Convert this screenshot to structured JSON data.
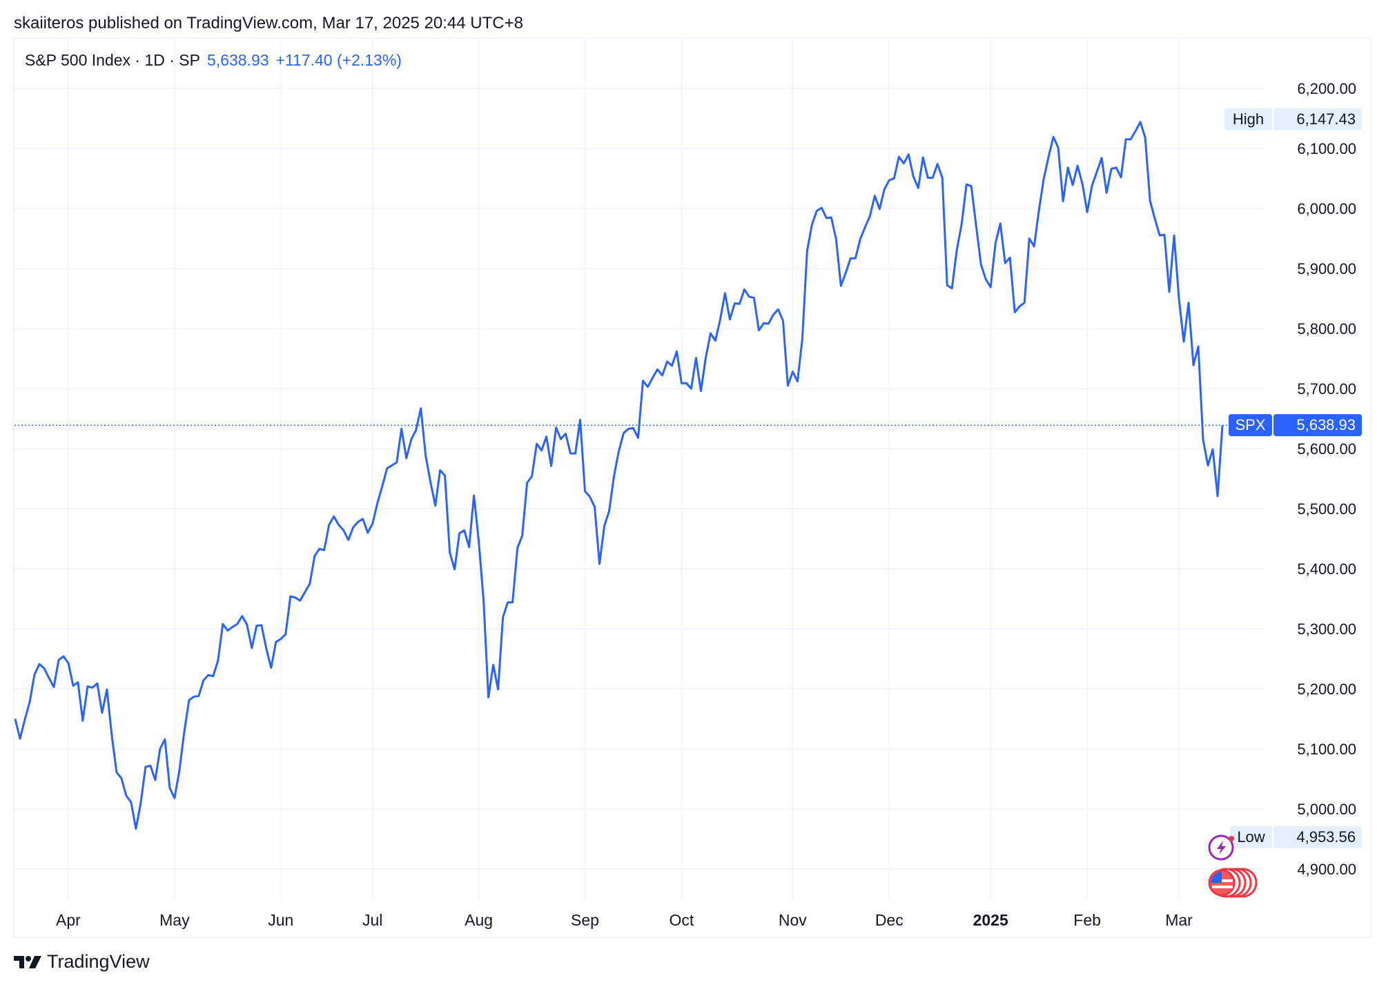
{
  "publisher_line": "skaiiteros published on TradingView.com, Mar 17, 2025 20:44 UTC+8",
  "legend": {
    "symbol_desc": "S&P 500 Index · 1D · SP",
    "last_price": "5,638.93",
    "change": "+117.40 (+2.13%)"
  },
  "price_tag": {
    "symbol": "SPX",
    "value": "5,638.93"
  },
  "high_tag": {
    "label": "High",
    "value": "6,147.43"
  },
  "low_tag": {
    "label": "Low",
    "value": "4,953.56"
  },
  "footer": {
    "brand": "TradingView"
  },
  "icons": [
    "lightning-event-icon",
    "us-flag-economic-events-icon"
  ],
  "colors": {
    "line": "#2962ff",
    "grid": "#f0f3fa",
    "high_low_bg": "#e3effd",
    "price_tag": "#2962ff"
  },
  "chart_data": {
    "type": "line",
    "title": "S&P 500 Index · 1D · SP",
    "ylim": [
      4840,
      6240
    ],
    "y_ticks": [
      4900,
      5000,
      5100,
      5200,
      5300,
      5400,
      5500,
      5600,
      5700,
      5800,
      5900,
      6000,
      6100,
      6200
    ],
    "y_tick_labels": [
      "4,900.00",
      "5,000.00",
      "5,100.00",
      "5,200.00",
      "5,300.00",
      "5,400.00",
      "5,500.00",
      "5,600.00",
      "5,700.00",
      "5,800.00",
      "5,900.00",
      "6,000.00",
      "6,100.00",
      "6,200.00"
    ],
    "x_tick_labels": [
      {
        "label": "Apr",
        "month": "2024-04"
      },
      {
        "label": "May",
        "month": "2024-05"
      },
      {
        "label": "Jun",
        "month": "2024-06"
      },
      {
        "label": "Jul",
        "month": "2024-07"
      },
      {
        "label": "Aug",
        "month": "2024-08"
      },
      {
        "label": "Sep",
        "month": "2024-09"
      },
      {
        "label": "Oct",
        "month": "2024-10"
      },
      {
        "label": "Nov",
        "month": "2024-11"
      },
      {
        "label": "Dec",
        "month": "2024-12"
      },
      {
        "label": "2025",
        "month": "2025-01",
        "bold": true
      },
      {
        "label": "Feb",
        "month": "2025-02"
      },
      {
        "label": "Mar",
        "month": "2025-03"
      }
    ],
    "grid": true,
    "last_value": 5638.93,
    "months": [
      {
        "month": "2024-03",
        "days": [
          14,
          15,
          18,
          19,
          20,
          21,
          22,
          25,
          26,
          27,
          28
        ],
        "close": [
          5150,
          5117,
          5149,
          5178,
          5224,
          5241,
          5234,
          5218,
          5203,
          5248,
          5254
        ]
      },
      {
        "month": "2024-04",
        "days": [
          1,
          2,
          3,
          4,
          5,
          8,
          9,
          10,
          11,
          12,
          15,
          16,
          17,
          18,
          19,
          22,
          23,
          24,
          25,
          26,
          29,
          30
        ],
        "close": [
          5243,
          5205,
          5211,
          5147,
          5204,
          5202,
          5209,
          5160,
          5199,
          5123,
          5061,
          5051,
          5022,
          5011,
          4967,
          5010,
          5070,
          5072,
          5048,
          5100,
          5116,
          5035
        ]
      },
      {
        "month": "2024-05",
        "days": [
          1,
          2,
          3,
          6,
          7,
          8,
          9,
          10,
          13,
          14,
          15,
          16,
          17,
          20,
          21,
          22,
          23,
          24,
          28,
          29,
          30,
          31
        ],
        "close": [
          5018,
          5064,
          5128,
          5181,
          5187,
          5188,
          5214,
          5223,
          5221,
          5247,
          5308,
          5297,
          5303,
          5308,
          5321,
          5307,
          5268,
          5305,
          5306,
          5267,
          5235,
          5278
        ]
      },
      {
        "month": "2024-06",
        "days": [
          3,
          4,
          5,
          6,
          7,
          10,
          11,
          12,
          13,
          14,
          17,
          18,
          20,
          21,
          24,
          25,
          26,
          27,
          28
        ],
        "close": [
          5283,
          5291,
          5354,
          5352,
          5347,
          5361,
          5375,
          5421,
          5433,
          5431,
          5473,
          5487,
          5473,
          5464,
          5448,
          5469,
          5478,
          5483,
          5460
        ]
      },
      {
        "month": "2024-07",
        "days": [
          1,
          2,
          3,
          5,
          8,
          9,
          10,
          11,
          12,
          15,
          16,
          17,
          18,
          19,
          22,
          23,
          24,
          25,
          26,
          29,
          30,
          31
        ],
        "close": [
          5475,
          5509,
          5537,
          5567,
          5572,
          5577,
          5633,
          5584,
          5615,
          5631,
          5667,
          5588,
          5544,
          5505,
          5564,
          5555,
          5427,
          5399,
          5459,
          5464,
          5436,
          5522
        ]
      },
      {
        "month": "2024-08",
        "days": [
          1,
          2,
          5,
          6,
          7,
          8,
          9,
          12,
          13,
          14,
          15,
          16,
          19,
          20,
          21,
          22,
          23,
          26,
          27,
          28,
          29,
          30
        ],
        "close": [
          5446,
          5347,
          5186,
          5240,
          5199,
          5319,
          5344,
          5344,
          5434,
          5455,
          5543,
          5554,
          5608,
          5597,
          5620,
          5571,
          5635,
          5616,
          5625,
          5592,
          5592,
          5648
        ]
      },
      {
        "month": "2024-09",
        "days": [
          3,
          4,
          5,
          6,
          9,
          10,
          11,
          12,
          13,
          16,
          17,
          18,
          19,
          20,
          23,
          24,
          25,
          26,
          27,
          30
        ],
        "close": [
          5529,
          5520,
          5503,
          5408,
          5471,
          5496,
          5554,
          5596,
          5626,
          5633,
          5634,
          5618,
          5713,
          5703,
          5718,
          5732,
          5722,
          5745,
          5738,
          5762
        ]
      },
      {
        "month": "2024-10",
        "days": [
          1,
          2,
          3,
          4,
          7,
          8,
          9,
          10,
          11,
          14,
          15,
          16,
          17,
          18,
          21,
          22,
          23,
          24,
          25,
          28,
          29,
          30,
          31
        ],
        "close": [
          5709,
          5709,
          5700,
          5751,
          5696,
          5751,
          5792,
          5780,
          5815,
          5859,
          5815,
          5842,
          5841,
          5865,
          5853,
          5851,
          5797,
          5809,
          5808,
          5823,
          5832,
          5813,
          5705
        ]
      },
      {
        "month": "2024-11",
        "days": [
          1,
          4,
          5,
          6,
          7,
          8,
          11,
          12,
          13,
          14,
          15,
          18,
          19,
          20,
          21,
          22,
          25,
          26,
          27,
          29
        ],
        "close": [
          5728,
          5712,
          5782,
          5929,
          5973,
          5996,
          6001,
          5984,
          5985,
          5949,
          5871,
          5893,
          5917,
          5917,
          5949,
          5969,
          5987,
          6021,
          5999,
          6032
        ]
      },
      {
        "month": "2024-12",
        "days": [
          2,
          3,
          4,
          5,
          6,
          9,
          10,
          11,
          12,
          13,
          16,
          17,
          18,
          19,
          20,
          23,
          24,
          26,
          27,
          30,
          31
        ],
        "close": [
          6047,
          6050,
          6086,
          6075,
          6090,
          6053,
          6034,
          6085,
          6051,
          6051,
          6074,
          6051,
          5872,
          5867,
          5931,
          5974,
          6040,
          6037,
          5971,
          5907,
          5882
        ]
      },
      {
        "month": "2025-01",
        "days": [
          2,
          3,
          6,
          7,
          8,
          10,
          13,
          14,
          15,
          16,
          17,
          21,
          22,
          23,
          24,
          27,
          28,
          29,
          30,
          31
        ],
        "close": [
          5869,
          5942,
          5975,
          5909,
          5918,
          5827,
          5837,
          5843,
          5950,
          5937,
          5997,
          6049,
          6086,
          6119,
          6101,
          6012,
          6068,
          6039,
          6071,
          6041
        ]
      },
      {
        "month": "2025-02",
        "days": [
          3,
          4,
          5,
          6,
          7,
          10,
          11,
          12,
          13,
          14,
          18,
          19,
          20,
          21,
          24,
          25,
          26,
          27,
          28
        ],
        "close": [
          5994,
          6038,
          6061,
          6084,
          6026,
          6066,
          6068,
          6052,
          6115,
          6115,
          6129,
          6144,
          6118,
          6013,
          5983,
          5955,
          5956,
          5861,
          5955
        ]
      },
      {
        "month": "2025-03",
        "days": [
          3,
          4,
          5,
          6,
          7,
          10,
          11,
          12,
          13,
          14
        ],
        "close": [
          5850,
          5778,
          5843,
          5739,
          5770,
          5615,
          5572,
          5599,
          5521,
          5638.93
        ]
      }
    ]
  }
}
